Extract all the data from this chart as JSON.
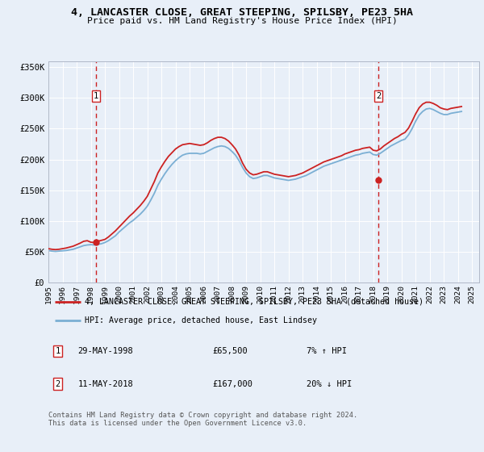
{
  "title": "4, LANCASTER CLOSE, GREAT STEEPING, SPILSBY, PE23 5HA",
  "subtitle": "Price paid vs. HM Land Registry's House Price Index (HPI)",
  "ylim": [
    0,
    360000
  ],
  "yticks": [
    0,
    50000,
    100000,
    150000,
    200000,
    250000,
    300000,
    350000
  ],
  "background_color": "#e8eff8",
  "legend_label_red": "4, LANCASTER CLOSE, GREAT STEEPING, SPILSBY, PE23 5HA (detached house)",
  "legend_label_blue": "HPI: Average price, detached house, East Lindsey",
  "sale1_date": 1998.38,
  "sale1_price": 65500,
  "sale2_date": 2018.36,
  "sale2_price": 167000,
  "footer_line1": "Contains HM Land Registry data © Crown copyright and database right 2024.",
  "footer_line2": "This data is licensed under the Open Government Licence v3.0.",
  "hpi_dates": [
    1995.0,
    1995.25,
    1995.5,
    1995.75,
    1996.0,
    1996.25,
    1996.5,
    1996.75,
    1997.0,
    1997.25,
    1997.5,
    1997.75,
    1998.0,
    1998.25,
    1998.5,
    1998.75,
    1999.0,
    1999.25,
    1999.5,
    1999.75,
    2000.0,
    2000.25,
    2000.5,
    2000.75,
    2001.0,
    2001.25,
    2001.5,
    2001.75,
    2002.0,
    2002.25,
    2002.5,
    2002.75,
    2003.0,
    2003.25,
    2003.5,
    2003.75,
    2004.0,
    2004.25,
    2004.5,
    2004.75,
    2005.0,
    2005.25,
    2005.5,
    2005.75,
    2006.0,
    2006.25,
    2006.5,
    2006.75,
    2007.0,
    2007.25,
    2007.5,
    2007.75,
    2008.0,
    2008.25,
    2008.5,
    2008.75,
    2009.0,
    2009.25,
    2009.5,
    2009.75,
    2010.0,
    2010.25,
    2010.5,
    2010.75,
    2011.0,
    2011.25,
    2011.5,
    2011.75,
    2012.0,
    2012.25,
    2012.5,
    2012.75,
    2013.0,
    2013.25,
    2013.5,
    2013.75,
    2014.0,
    2014.25,
    2014.5,
    2014.75,
    2015.0,
    2015.25,
    2015.5,
    2015.75,
    2016.0,
    2016.25,
    2016.5,
    2016.75,
    2017.0,
    2017.25,
    2017.5,
    2017.75,
    2018.0,
    2018.25,
    2018.5,
    2018.75,
    2019.0,
    2019.25,
    2019.5,
    2019.75,
    2020.0,
    2020.25,
    2020.5,
    2020.75,
    2021.0,
    2021.25,
    2021.5,
    2021.75,
    2022.0,
    2022.25,
    2022.5,
    2022.75,
    2023.0,
    2023.25,
    2023.5,
    2023.75,
    2024.0,
    2024.25
  ],
  "hpi_values": [
    52000,
    51000,
    50500,
    51000,
    51500,
    52000,
    53000,
    54000,
    56000,
    58000,
    60000,
    61000,
    61500,
    61000,
    62000,
    63000,
    65000,
    68000,
    72000,
    76000,
    82000,
    87000,
    92000,
    97000,
    101000,
    106000,
    111000,
    117000,
    124000,
    134000,
    145000,
    158000,
    168000,
    177000,
    185000,
    192000,
    198000,
    203000,
    207000,
    209000,
    210000,
    210000,
    210000,
    209000,
    210000,
    213000,
    216000,
    219000,
    221000,
    222000,
    221000,
    218000,
    213000,
    207000,
    198000,
    187000,
    178000,
    172000,
    169000,
    170000,
    172000,
    174000,
    174000,
    172000,
    170000,
    169000,
    168000,
    167000,
    166000,
    167000,
    168000,
    170000,
    172000,
    174000,
    177000,
    180000,
    183000,
    186000,
    189000,
    191000,
    193000,
    195000,
    197000,
    199000,
    201000,
    203000,
    205000,
    207000,
    208000,
    210000,
    211000,
    212000,
    208000,
    207000,
    210000,
    214000,
    218000,
    222000,
    225000,
    228000,
    231000,
    233000,
    240000,
    250000,
    262000,
    272000,
    278000,
    282000,
    283000,
    281000,
    278000,
    275000,
    273000,
    273000,
    275000,
    276000,
    277000,
    278000
  ],
  "red_dates": [
    1995.0,
    1995.25,
    1995.5,
    1995.75,
    1996.0,
    1996.25,
    1996.5,
    1996.75,
    1997.0,
    1997.25,
    1997.5,
    1997.75,
    1998.0,
    1998.25,
    1998.5,
    1998.75,
    1999.0,
    1999.25,
    1999.5,
    1999.75,
    2000.0,
    2000.25,
    2000.5,
    2000.75,
    2001.0,
    2001.25,
    2001.5,
    2001.75,
    2002.0,
    2002.25,
    2002.5,
    2002.75,
    2003.0,
    2003.25,
    2003.5,
    2003.75,
    2004.0,
    2004.25,
    2004.5,
    2004.75,
    2005.0,
    2005.25,
    2005.5,
    2005.75,
    2006.0,
    2006.25,
    2006.5,
    2006.75,
    2007.0,
    2007.25,
    2007.5,
    2007.75,
    2008.0,
    2008.25,
    2008.5,
    2008.75,
    2009.0,
    2009.25,
    2009.5,
    2009.75,
    2010.0,
    2010.25,
    2010.5,
    2010.75,
    2011.0,
    2011.25,
    2011.5,
    2011.75,
    2012.0,
    2012.25,
    2012.5,
    2012.75,
    2013.0,
    2013.25,
    2013.5,
    2013.75,
    2014.0,
    2014.25,
    2014.5,
    2014.75,
    2015.0,
    2015.25,
    2015.5,
    2015.75,
    2016.0,
    2016.25,
    2016.5,
    2016.75,
    2017.0,
    2017.25,
    2017.5,
    2017.75,
    2018.0,
    2018.25,
    2018.5,
    2018.75,
    2019.0,
    2019.25,
    2019.5,
    2019.75,
    2020.0,
    2020.25,
    2020.5,
    2020.75,
    2021.0,
    2021.25,
    2021.5,
    2021.75,
    2022.0,
    2022.25,
    2022.5,
    2022.75,
    2023.0,
    2023.25,
    2023.5,
    2023.75,
    2024.0,
    2024.25
  ],
  "red_values": [
    55000,
    54000,
    53500,
    54000,
    55000,
    56000,
    57500,
    59000,
    61500,
    64000,
    67000,
    68000,
    65500,
    65000,
    67000,
    68500,
    70000,
    74000,
    79000,
    84000,
    90000,
    96000,
    102000,
    108000,
    113000,
    119000,
    125000,
    132000,
    140000,
    152000,
    164000,
    178000,
    188000,
    197000,
    205000,
    211000,
    217000,
    221000,
    224000,
    225000,
    226000,
    225000,
    224000,
    223000,
    224000,
    227000,
    231000,
    234000,
    236000,
    236000,
    234000,
    230000,
    224000,
    217000,
    207000,
    194000,
    184000,
    178000,
    175000,
    176000,
    178000,
    180000,
    180000,
    178000,
    176000,
    175000,
    174000,
    173000,
    172000,
    173000,
    174000,
    176000,
    178000,
    181000,
    184000,
    187000,
    190000,
    193000,
    196000,
    198000,
    200000,
    202000,
    204000,
    206000,
    209000,
    211000,
    213000,
    215000,
    216000,
    218000,
    219000,
    220000,
    215000,
    214000,
    217000,
    222000,
    226000,
    230000,
    234000,
    237000,
    241000,
    244000,
    251000,
    262000,
    274000,
    284000,
    290000,
    293000,
    293000,
    291000,
    288000,
    284000,
    282000,
    281000,
    283000,
    284000,
    285000,
    286000
  ],
  "x_tick_years": [
    1995,
    1996,
    1997,
    1998,
    1999,
    2000,
    2001,
    2002,
    2003,
    2004,
    2005,
    2006,
    2007,
    2008,
    2009,
    2010,
    2011,
    2012,
    2013,
    2014,
    2015,
    2016,
    2017,
    2018,
    2019,
    2020,
    2021,
    2022,
    2023,
    2024,
    2025
  ]
}
